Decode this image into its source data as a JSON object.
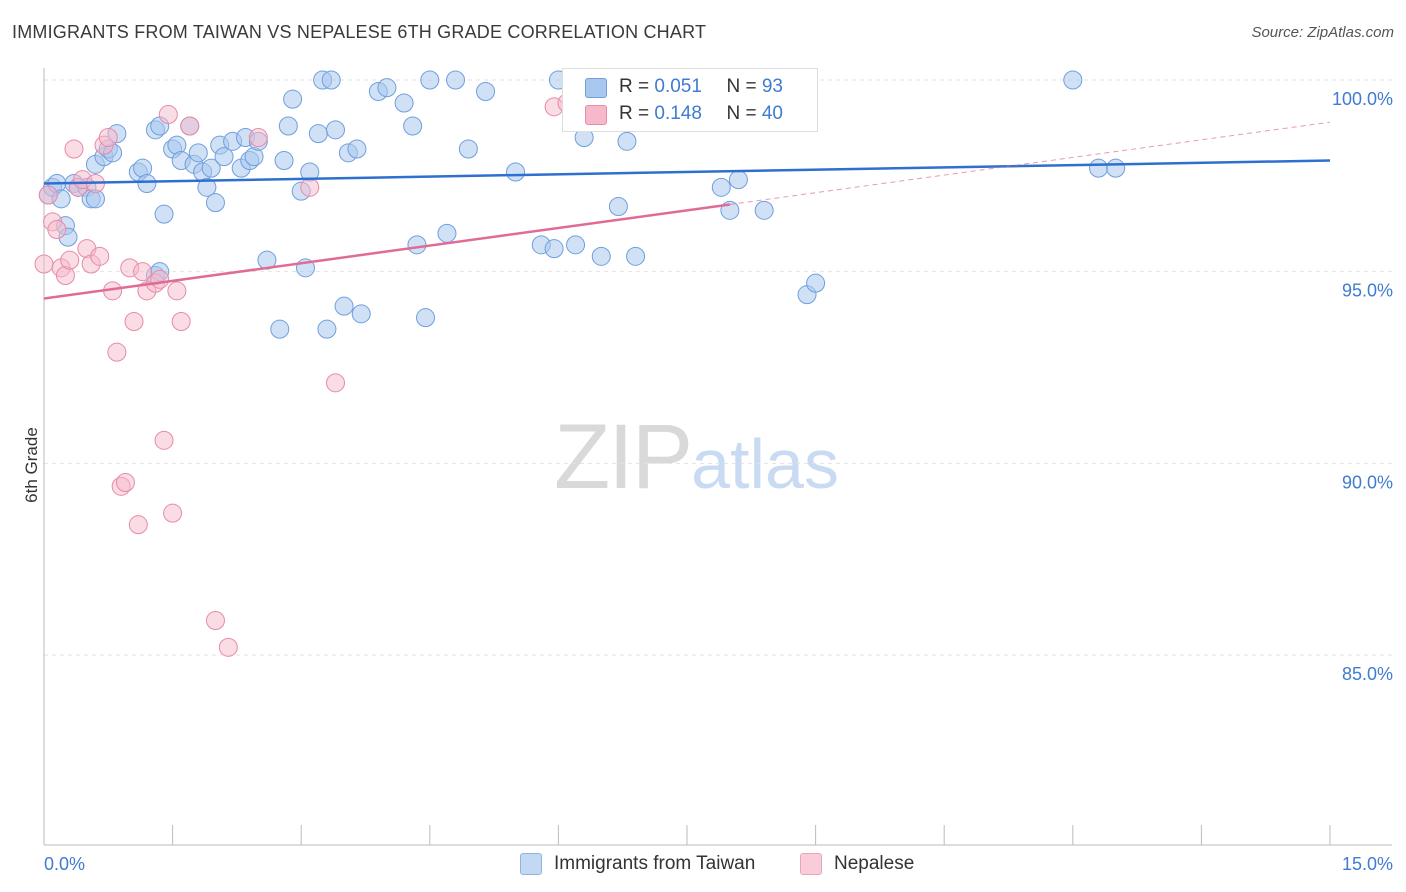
{
  "title": "IMMIGRANTS FROM TAIWAN VS NEPALESE 6TH GRADE CORRELATION CHART",
  "source": "Source: ZipAtlas.com",
  "watermark": {
    "zip": "ZIP",
    "atlas": "atlas"
  },
  "legend": {
    "rows": [
      {
        "r_label": "R = ",
        "r_value": "0.051",
        "n_label": "N = ",
        "n_value": "93"
      },
      {
        "r_label": "R = ",
        "r_value": "0.148",
        "n_label": "N = ",
        "n_value": "40"
      }
    ]
  },
  "bottom_legend": [
    "Immigrants from Taiwan",
    "Nepalese"
  ],
  "colors": {
    "taiwan_fill": "#a9c8ef",
    "taiwan_stroke": "#6f9fdc",
    "taiwan_line": "#2f6fd0",
    "nepal_fill": "#f6b9cb",
    "nepal_stroke": "#e88aa8",
    "nepal_line": "#e06b95",
    "grid": "#e2e2e2",
    "tick_text": "#3f7bd1"
  },
  "chart_data": {
    "type": "scatter",
    "title": "IMMIGRANTS FROM TAIWAN VS NEPALESE 6TH GRADE CORRELATION CHART",
    "xlabel": "",
    "ylabel": "6th Grade",
    "xlim": [
      0,
      15
    ],
    "ylim": [
      80,
      101
    ],
    "x_tick_labels": [
      "0.0%",
      "15.0%"
    ],
    "y_ticks": [
      85,
      90,
      95,
      100
    ],
    "y_tick_labels": [
      "85.0%",
      "90.0%",
      "95.0%",
      "100.0%"
    ],
    "grid": true,
    "legend_position": "top-center",
    "series": [
      {
        "name": "Immigrants from Taiwan",
        "R": 0.051,
        "N": 93,
        "trend": {
          "x": [
            0,
            15
          ],
          "y": [
            97.3,
            97.9
          ]
        },
        "points": [
          [
            0.05,
            97.0
          ],
          [
            0.1,
            97.2
          ],
          [
            0.15,
            97.3
          ],
          [
            0.2,
            96.9
          ],
          [
            0.25,
            96.2
          ],
          [
            0.28,
            95.9
          ],
          [
            0.35,
            97.3
          ],
          [
            0.4,
            97.2
          ],
          [
            0.5,
            97.2
          ],
          [
            0.55,
            96.9
          ],
          [
            0.6,
            96.9
          ],
          [
            0.6,
            97.8
          ],
          [
            0.7,
            98.0
          ],
          [
            0.75,
            98.2
          ],
          [
            0.8,
            98.1
          ],
          [
            0.85,
            98.6
          ],
          [
            1.1,
            97.6
          ],
          [
            1.15,
            97.7
          ],
          [
            1.2,
            97.3
          ],
          [
            1.3,
            98.7
          ],
          [
            1.35,
            98.8
          ],
          [
            1.4,
            96.5
          ],
          [
            1.5,
            98.2
          ],
          [
            1.55,
            98.3
          ],
          [
            1.6,
            97.9
          ],
          [
            1.7,
            98.8
          ],
          [
            1.75,
            97.8
          ],
          [
            1.8,
            98.1
          ],
          [
            1.85,
            97.6
          ],
          [
            1.9,
            97.2
          ],
          [
            1.95,
            97.7
          ],
          [
            2.0,
            96.8
          ],
          [
            2.05,
            98.3
          ],
          [
            2.1,
            98.0
          ],
          [
            2.2,
            98.4
          ],
          [
            2.3,
            97.7
          ],
          [
            2.35,
            98.5
          ],
          [
            2.4,
            97.9
          ],
          [
            2.45,
            98.0
          ],
          [
            2.5,
            98.4
          ],
          [
            2.6,
            95.3
          ],
          [
            2.8,
            97.9
          ],
          [
            2.85,
            98.8
          ],
          [
            2.9,
            99.5
          ],
          [
            3.0,
            97.1
          ],
          [
            3.05,
            95.1
          ],
          [
            3.1,
            97.6
          ],
          [
            3.2,
            98.6
          ],
          [
            3.25,
            100.0
          ],
          [
            3.35,
            100.0
          ],
          [
            3.4,
            98.7
          ],
          [
            3.5,
            94.1
          ],
          [
            3.55,
            98.1
          ],
          [
            3.65,
            98.2
          ],
          [
            3.7,
            93.9
          ],
          [
            3.9,
            99.7
          ],
          [
            4.0,
            99.8
          ],
          [
            4.2,
            99.4
          ],
          [
            4.3,
            98.8
          ],
          [
            4.35,
            95.7
          ],
          [
            4.5,
            100.0
          ],
          [
            4.7,
            96.0
          ],
          [
            4.8,
            100.0
          ],
          [
            4.95,
            98.2
          ],
          [
            5.15,
            99.7
          ],
          [
            5.5,
            97.6
          ],
          [
            5.8,
            95.7
          ],
          [
            5.95,
            95.6
          ],
          [
            6.0,
            100.0
          ],
          [
            6.2,
            95.7
          ],
          [
            6.3,
            98.5
          ],
          [
            6.5,
            95.4
          ],
          [
            6.6,
            98.9
          ],
          [
            6.7,
            96.7
          ],
          [
            6.8,
            98.4
          ],
          [
            6.9,
            95.4
          ],
          [
            7.0,
            100.0
          ],
          [
            7.1,
            99.3
          ],
          [
            7.2,
            100.0
          ],
          [
            7.9,
            97.2
          ],
          [
            8.0,
            96.6
          ],
          [
            8.1,
            97.4
          ],
          [
            8.4,
            96.6
          ],
          [
            8.9,
            94.4
          ],
          [
            9.0,
            94.7
          ],
          [
            12.0,
            100.0
          ],
          [
            12.3,
            97.7
          ],
          [
            12.5,
            97.7
          ],
          [
            3.3,
            93.5
          ],
          [
            2.75,
            93.5
          ],
          [
            4.45,
            93.8
          ],
          [
            1.3,
            94.9
          ],
          [
            1.35,
            95.0
          ]
        ]
      },
      {
        "name": "Nepalese",
        "R": 0.148,
        "N": 40,
        "trend": {
          "x": [
            0,
            15
          ],
          "y": [
            94.3,
            98.9
          ]
        },
        "points": [
          [
            0.0,
            95.2
          ],
          [
            0.05,
            97.0
          ],
          [
            0.1,
            96.3
          ],
          [
            0.15,
            96.1
          ],
          [
            0.2,
            95.1
          ],
          [
            0.25,
            94.9
          ],
          [
            0.3,
            95.3
          ],
          [
            0.35,
            98.2
          ],
          [
            0.4,
            97.2
          ],
          [
            0.45,
            97.4
          ],
          [
            0.5,
            95.6
          ],
          [
            0.55,
            95.2
          ],
          [
            0.6,
            97.3
          ],
          [
            0.65,
            95.4
          ],
          [
            0.7,
            98.3
          ],
          [
            0.75,
            98.5
          ],
          [
            0.8,
            94.5
          ],
          [
            0.85,
            92.9
          ],
          [
            0.9,
            89.4
          ],
          [
            0.95,
            89.5
          ],
          [
            1.0,
            95.1
          ],
          [
            1.05,
            93.7
          ],
          [
            1.1,
            88.4
          ],
          [
            1.15,
            95.0
          ],
          [
            1.2,
            94.5
          ],
          [
            1.3,
            94.7
          ],
          [
            1.35,
            94.8
          ],
          [
            1.4,
            90.6
          ],
          [
            1.45,
            99.1
          ],
          [
            1.5,
            88.7
          ],
          [
            1.55,
            94.5
          ],
          [
            1.6,
            93.7
          ],
          [
            1.7,
            98.8
          ],
          [
            2.0,
            85.9
          ],
          [
            2.15,
            85.2
          ],
          [
            2.5,
            98.5
          ],
          [
            3.1,
            97.2
          ],
          [
            3.4,
            92.1
          ],
          [
            5.95,
            99.3
          ],
          [
            6.1,
            99.4
          ]
        ]
      }
    ]
  }
}
